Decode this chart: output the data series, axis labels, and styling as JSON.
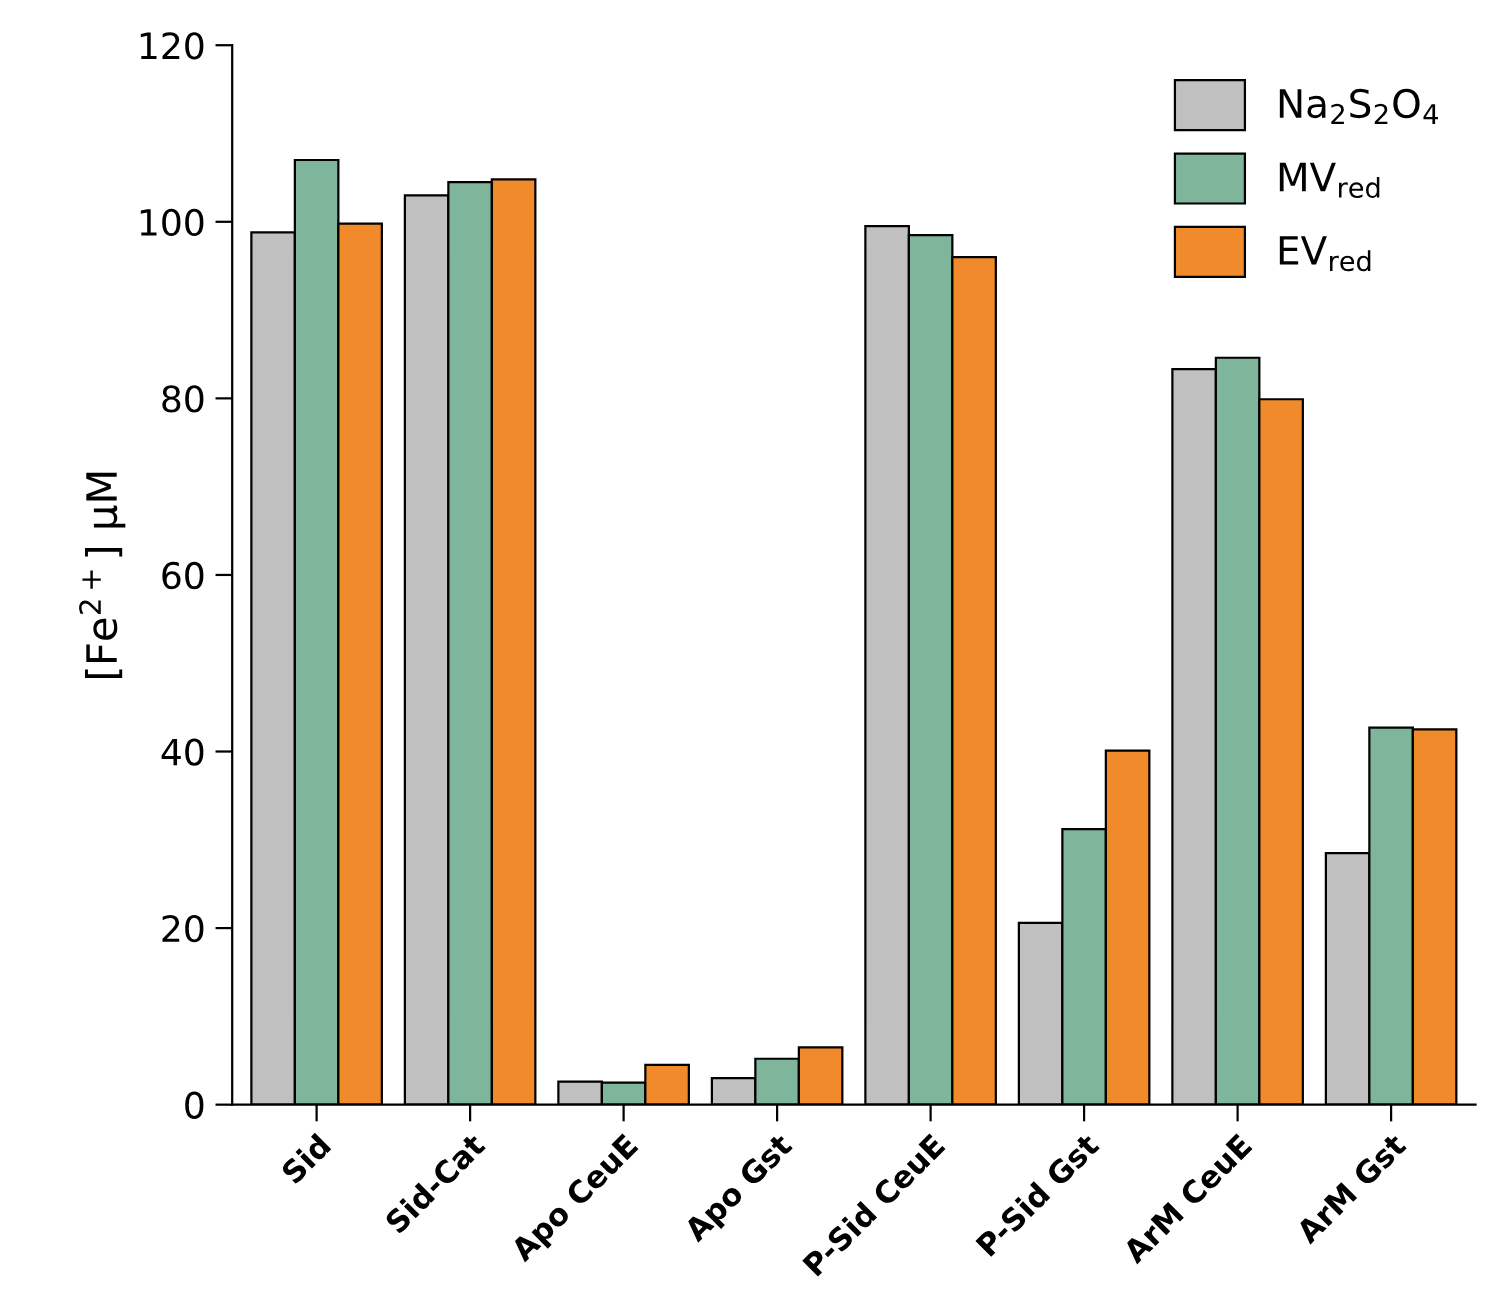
{
  "chart_data": {
    "type": "bar",
    "ylabel": "[Fe$^{2+}$] μM",
    "categories": [
      "Sid",
      "Sid-Cat",
      "Apo CeuE",
      "Apo Gst",
      "P-Sid CeuE",
      "P-Sid Gst",
      "ArM CeuE",
      "ArM Gst"
    ],
    "series": [
      {
        "name": "Na$_{2}$S$_{2}$O$_{4}$",
        "color": "#c0c0c0",
        "values": [
          98.8,
          103,
          2.6,
          3,
          99.5,
          20.6,
          83.3,
          28.5
        ]
      },
      {
        "name": "MV$_{red}$",
        "color": "#7fb59a",
        "values": [
          107,
          104.5,
          2.5,
          5.2,
          98.5,
          31.2,
          84.6,
          42.7
        ]
      },
      {
        "name": "EV$_{red}$",
        "color": "#f08a2b",
        "values": [
          99.8,
          104.8,
          4.5,
          6.5,
          96,
          40.1,
          79.9,
          42.5
        ]
      }
    ],
    "ylim": [
      0,
      120
    ],
    "yticks": [
      0,
      20,
      40,
      60,
      80,
      100,
      120
    ],
    "legend": "top right",
    "grid": false
  }
}
